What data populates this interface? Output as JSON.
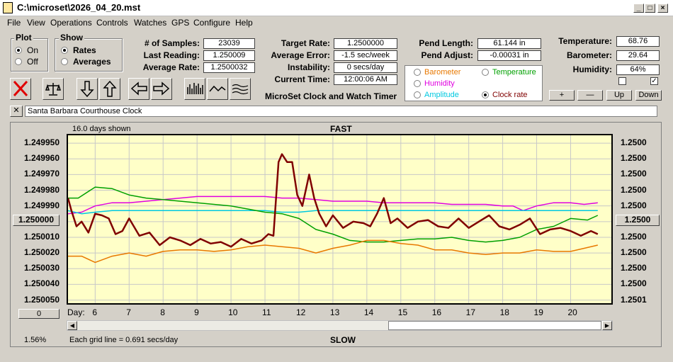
{
  "window": {
    "title": "C:\\microset\\2026_04_20.mst"
  },
  "menu": [
    "File",
    "View",
    "Operations",
    "Controls",
    "Watches",
    "GPS",
    "Configure",
    "Help"
  ],
  "plot_group": {
    "title": "Plot",
    "on": "On",
    "off": "Off"
  },
  "show_group": {
    "title": "Show",
    "rates": "Rates",
    "averages": "Averages"
  },
  "stats": {
    "samples_label": "# of Samples:",
    "samples": "23039",
    "last_label": "Last Reading:",
    "last": "1.250009",
    "avg_label": "Average Rate:",
    "avg": "1.2500032"
  },
  "timing": {
    "target_label": "Target Rate:",
    "target": "1.2500000",
    "error_label": "Average Error:",
    "error": "-1.5 sec/week",
    "instab_label": "Instability:",
    "instab": "0 secs/day",
    "time_label": "Current Time:",
    "time": "12:00:06 AM",
    "product": "MicroSet Clock and Watch Timer"
  },
  "pendulum": {
    "length_label": "Pend Length:",
    "length": "61.144 in",
    "adjust_label": "Pend Adjust:",
    "adjust": "-0.00031 in"
  },
  "environment": {
    "temp_label": "Temperature:",
    "temp": "68.76",
    "baro_label": "Barometer:",
    "baro": "29.64",
    "hum_label": "Humidity:",
    "hum": "64%"
  },
  "legend": {
    "barometer": "Barometer",
    "temperature": "Temperature",
    "humidity": "Humidity",
    "amplitude": "Amplitude",
    "clock_rate": "Clock rate",
    "colors": {
      "barometer": "#e87800",
      "temperature": "#00a000",
      "humidity": "#e000e0",
      "amplitude": "#00c8e0",
      "clock_rate": "#800000"
    }
  },
  "buttons": {
    "plus": "+",
    "minus": "—",
    "up": "Up",
    "down": "Down"
  },
  "clock_name": "Santa Barbara Courthouse Clock",
  "chart_header": {
    "days_shown": "16.0 days shown",
    "fast": "FAST",
    "slow": "SLOW",
    "day_label": "Day:",
    "grid_note": "Each grid line = 0.691 secs/day",
    "zoom": "1.56%",
    "left_box": "1.250000",
    "right_box": "1.2500",
    "zero_box": "0"
  },
  "chart_data": {
    "type": "line",
    "y_left_ticks": [
      "1.249950",
      "1.249960",
      "1.249970",
      "1.249980",
      "1.249990",
      "1.250000",
      "1.250010",
      "1.250020",
      "1.250030",
      "1.250040",
      "1.250050"
    ],
    "y_right_ticks": [
      "1.2500",
      "1.2500",
      "1.2500",
      "1.2500",
      "1.2500",
      "1.2500",
      "1.2500",
      "1.2500",
      "1.2500",
      "1.2500",
      "1.2501"
    ],
    "x_days": [
      6,
      7,
      8,
      9,
      10,
      11,
      12,
      13,
      14,
      15,
      16,
      17,
      18,
      19,
      20
    ],
    "xlim": [
      5.2,
      21.2
    ],
    "ylim": [
      1.249945,
      1.250052
    ],
    "series": [
      {
        "name": "Humidity",
        "color": "#e000e0",
        "x": [
          5.2,
          5.6,
          6.0,
          6.5,
          7.0,
          7.5,
          8.0,
          8.5,
          9.0,
          9.5,
          10.0,
          10.5,
          11.0,
          11.5,
          12.0,
          12.5,
          13.0,
          13.5,
          14.0,
          14.5,
          15.0,
          15.5,
          16.0,
          16.5,
          17.0,
          17.5,
          18.0,
          18.3,
          18.6,
          19.0,
          19.5,
          20.0,
          20.4,
          20.8
        ],
        "y": [
          1.249995,
          1.249994,
          1.24999,
          1.249988,
          1.249988,
          1.249987,
          1.249986,
          1.249985,
          1.249984,
          1.249984,
          1.249984,
          1.249984,
          1.249984,
          1.249985,
          1.249985,
          1.249986,
          1.249987,
          1.249987,
          1.249987,
          1.249988,
          1.249988,
          1.249988,
          1.249988,
          1.249989,
          1.249989,
          1.249989,
          1.24999,
          1.24999,
          1.249993,
          1.24999,
          1.249988,
          1.249988,
          1.249989,
          1.249988
        ]
      },
      {
        "name": "Amplitude",
        "color": "#00c8e0",
        "x": [
          5.2,
          5.6,
          6.0,
          6.5,
          7.0,
          7.5,
          8.0,
          8.5,
          9.0,
          9.5,
          10.0,
          10.5,
          11.0,
          11.5,
          12.0,
          12.5,
          13.0,
          13.5,
          14.0,
          14.5,
          15.0,
          15.5,
          16.0,
          16.5,
          17.0,
          17.5,
          18.0,
          18.5,
          19.0,
          19.5,
          20.0,
          20.4,
          20.8
        ],
        "y": [
          1.249993,
          1.249995,
          1.249994,
          1.249993,
          1.249993,
          1.249993,
          1.249993,
          1.249993,
          1.249993,
          1.249993,
          1.249993,
          1.249993,
          1.249993,
          1.249994,
          1.249994,
          1.249993,
          1.249993,
          1.249993,
          1.249993,
          1.249993,
          1.249993,
          1.249993,
          1.249993,
          1.249993,
          1.249993,
          1.249993,
          1.249993,
          1.249993,
          1.249993,
          1.249993,
          1.249993,
          1.249993,
          1.249993
        ]
      },
      {
        "name": "Temperature",
        "color": "#00a000",
        "x": [
          5.2,
          5.5,
          6.0,
          6.5,
          7.0,
          7.5,
          8.0,
          8.5,
          9.0,
          9.5,
          10.0,
          10.5,
          11.0,
          11.5,
          12.0,
          12.5,
          13.0,
          13.5,
          14.0,
          14.5,
          15.0,
          15.5,
          16.0,
          16.5,
          17.0,
          17.5,
          18.0,
          18.5,
          19.0,
          19.5,
          20.0,
          20.5,
          20.8
        ],
        "y": [
          1.249985,
          1.249985,
          1.249978,
          1.249979,
          1.249983,
          1.249985,
          1.249986,
          1.249987,
          1.249988,
          1.249989,
          1.24999,
          1.249992,
          1.249994,
          1.249995,
          1.249998,
          1.250005,
          1.250008,
          1.250012,
          1.250013,
          1.250013,
          1.250012,
          1.250011,
          1.250011,
          1.25001,
          1.250012,
          1.250013,
          1.250012,
          1.25001,
          1.250005,
          1.250003,
          1.249998,
          1.249999,
          1.249996
        ]
      },
      {
        "name": "Barometer",
        "color": "#e87800",
        "x": [
          5.2,
          5.6,
          6.0,
          6.5,
          7.0,
          7.5,
          8.0,
          8.5,
          9.0,
          9.5,
          10.0,
          10.5,
          11.0,
          11.5,
          12.0,
          12.5,
          13.0,
          13.5,
          14.0,
          14.5,
          15.0,
          15.5,
          16.0,
          16.5,
          17.0,
          17.5,
          18.0,
          18.5,
          19.0,
          19.5,
          20.0,
          20.4,
          20.8
        ],
        "y": [
          1.250022,
          1.250022,
          1.250026,
          1.250022,
          1.25002,
          1.250022,
          1.250019,
          1.250018,
          1.250018,
          1.250019,
          1.250018,
          1.250016,
          1.250015,
          1.250016,
          1.250017,
          1.25002,
          1.250017,
          1.250015,
          1.250012,
          1.250012,
          1.250014,
          1.250015,
          1.250018,
          1.250018,
          1.25002,
          1.250021,
          1.25002,
          1.25002,
          1.250018,
          1.250019,
          1.250019,
          1.250017,
          1.250015
        ]
      },
      {
        "name": "Clock rate",
        "color": "#800000",
        "x": [
          5.2,
          5.3,
          5.45,
          5.6,
          5.8,
          6.0,
          6.2,
          6.4,
          6.6,
          6.8,
          7.0,
          7.3,
          7.6,
          7.9,
          8.2,
          8.5,
          8.8,
          9.1,
          9.4,
          9.7,
          10.0,
          10.3,
          10.6,
          10.9,
          11.1,
          11.25,
          11.4,
          11.5,
          11.65,
          11.8,
          11.95,
          12.1,
          12.3,
          12.45,
          12.6,
          12.8,
          13.0,
          13.3,
          13.6,
          13.9,
          14.1,
          14.3,
          14.5,
          14.7,
          14.9,
          15.2,
          15.5,
          15.8,
          16.1,
          16.4,
          16.7,
          17.0,
          17.3,
          17.6,
          17.9,
          18.2,
          18.5,
          18.8,
          19.1,
          19.4,
          19.7,
          20.0,
          20.3,
          20.6,
          20.8
        ],
        "y": [
          1.249985,
          1.249993,
          1.250003,
          1.25,
          1.250007,
          1.249995,
          1.249996,
          1.249998,
          1.250008,
          1.250006,
          1.249998,
          1.250009,
          1.250007,
          1.250015,
          1.25001,
          1.250012,
          1.250015,
          1.250011,
          1.250014,
          1.250013,
          1.250016,
          1.250011,
          1.250014,
          1.250012,
          1.250008,
          1.250009,
          1.249962,
          1.249957,
          1.249962,
          1.249962,
          1.249983,
          1.24999,
          1.24997,
          1.249985,
          1.249995,
          1.250003,
          1.249996,
          1.250004,
          1.25,
          1.250001,
          1.250003,
          1.249995,
          1.249985,
          1.250001,
          1.249998,
          1.250004,
          1.25,
          1.249999,
          1.250003,
          1.250004,
          1.249998,
          1.250004,
          1.25,
          1.249996,
          1.250003,
          1.250005,
          1.250002,
          1.249998,
          1.250008,
          1.250005,
          1.250004,
          1.250006,
          1.250009,
          1.250006,
          1.250008
        ]
      }
    ]
  }
}
